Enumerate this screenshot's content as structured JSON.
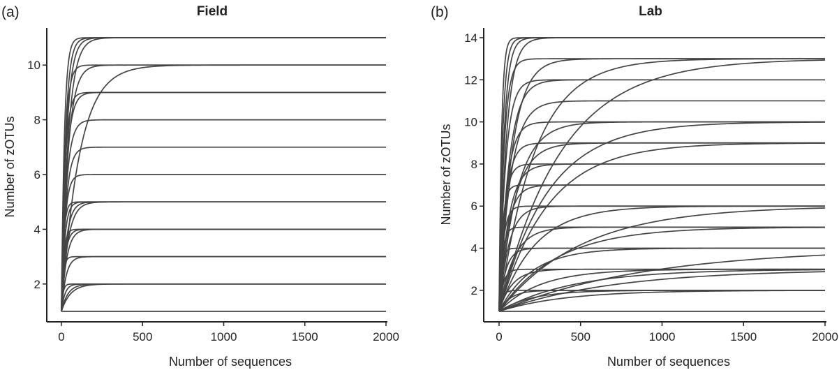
{
  "chart_data": [
    {
      "type": "line",
      "panel_label": "(a)",
      "title": "Field",
      "xlabel": "Number of sequences",
      "ylabel": "Number of zOTUs",
      "xlim": [
        0,
        2000
      ],
      "ylim": [
        1,
        11
      ],
      "xticks": [
        0,
        500,
        1000,
        1500,
        2000
      ],
      "yticks": [
        2,
        4,
        6,
        8,
        10
      ],
      "grid": false,
      "line_color": "#444444",
      "curve_model": "rarefaction: y = 1 + (final - 1) * (1 - exp(-x / rate))",
      "series": [
        {
          "final": 11,
          "rate": 18
        },
        {
          "final": 11,
          "rate": 25
        },
        {
          "final": 11,
          "rate": 32
        },
        {
          "final": 11,
          "rate": 42
        },
        {
          "final": 10,
          "rate": 22
        },
        {
          "final": 10,
          "rate": 40
        },
        {
          "final": 10,
          "rate": 110
        },
        {
          "final": 9,
          "rate": 22
        },
        {
          "final": 9,
          "rate": 30
        },
        {
          "final": 8,
          "rate": 30
        },
        {
          "final": 7,
          "rate": 28
        },
        {
          "final": 6,
          "rate": 22
        },
        {
          "final": 5,
          "rate": 14
        },
        {
          "final": 5,
          "rate": 20
        },
        {
          "final": 5,
          "rate": 30
        },
        {
          "final": 5,
          "rate": 40
        },
        {
          "final": 4,
          "rate": 14
        },
        {
          "final": 4,
          "rate": 22
        },
        {
          "final": 4,
          "rate": 32
        },
        {
          "final": 3,
          "rate": 12
        },
        {
          "final": 3,
          "rate": 28
        },
        {
          "final": 2,
          "rate": 10
        },
        {
          "final": 2,
          "rate": 22
        },
        {
          "final": 2,
          "rate": 40
        },
        {
          "final": 2,
          "rate": 55
        },
        {
          "final": 1,
          "rate": 1
        }
      ]
    },
    {
      "type": "line",
      "panel_label": "(b)",
      "title": "Lab",
      "xlabel": "Number of sequences",
      "ylabel": "Number of zOTUs",
      "xlim": [
        0,
        2000
      ],
      "ylim": [
        1,
        14
      ],
      "xticks": [
        0,
        500,
        1000,
        1500,
        2000
      ],
      "yticks": [
        2,
        4,
        6,
        8,
        10,
        12,
        14
      ],
      "grid": false,
      "line_color": "#444444",
      "curve_model": "rarefaction: y = 1 + (final - 1) * (1 - exp(-x / rate))",
      "series": [
        {
          "final": 14,
          "rate": 15
        },
        {
          "final": 14,
          "rate": 22
        },
        {
          "final": 14,
          "rate": 30
        },
        {
          "final": 14,
          "rate": 45
        },
        {
          "final": 13,
          "rate": 30
        },
        {
          "final": 13,
          "rate": 80
        },
        {
          "final": 13,
          "rate": 220
        },
        {
          "final": 13,
          "rate": 380
        },
        {
          "final": 12,
          "rate": 40
        },
        {
          "final": 12,
          "rate": 60
        },
        {
          "final": 11,
          "rate": 70
        },
        {
          "final": 10,
          "rate": 45
        },
        {
          "final": 10,
          "rate": 110
        },
        {
          "final": 10,
          "rate": 300
        },
        {
          "final": 9,
          "rate": 40
        },
        {
          "final": 9,
          "rate": 90
        },
        {
          "final": 9,
          "rate": 300
        },
        {
          "final": 8,
          "rate": 30
        },
        {
          "final": 8,
          "rate": 60
        },
        {
          "final": 7,
          "rate": 20
        },
        {
          "final": 7,
          "rate": 50
        },
        {
          "final": 6,
          "rate": 25
        },
        {
          "final": 6,
          "rate": 60
        },
        {
          "final": 6,
          "rate": 220
        },
        {
          "final": 6,
          "rate": 500
        },
        {
          "final": 5,
          "rate": 20
        },
        {
          "final": 5,
          "rate": 90
        },
        {
          "final": 5,
          "rate": 350
        },
        {
          "final": 4,
          "rate": 15
        },
        {
          "final": 4,
          "rate": 40
        },
        {
          "final": 4,
          "rate": 200
        },
        {
          "final": 4,
          "rate": 900
        },
        {
          "final": 3,
          "rate": 25
        },
        {
          "final": 3,
          "rate": 80
        },
        {
          "final": 3,
          "rate": 250
        },
        {
          "final": 3,
          "rate": 450
        },
        {
          "final": 3,
          "rate": 700
        },
        {
          "final": 2,
          "rate": 20
        },
        {
          "final": 2,
          "rate": 70
        },
        {
          "final": 2,
          "rate": 200
        },
        {
          "final": 2,
          "rate": 400
        },
        {
          "final": 1,
          "rate": 1
        }
      ]
    }
  ]
}
